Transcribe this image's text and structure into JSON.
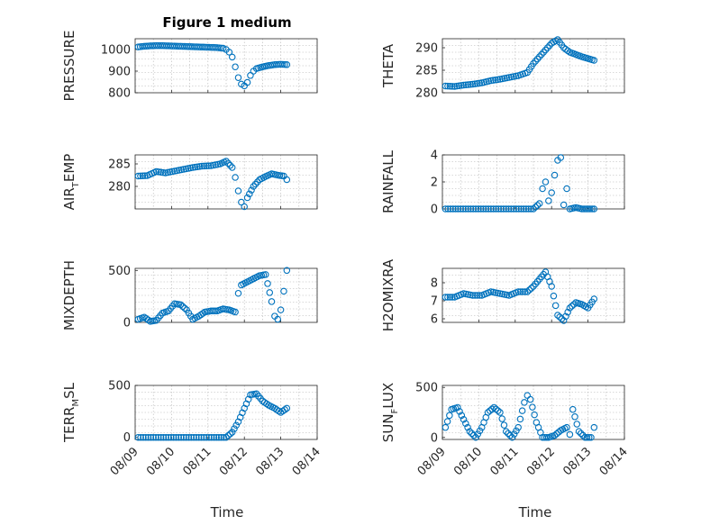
{
  "figure": {
    "title": "Figure 1 medium",
    "x_axis_label": "Time",
    "marker_color": "#0072BD"
  },
  "chart_data": [
    {
      "type": "scatter",
      "ylabel": "PRESSURE",
      "ylim": [
        800,
        1050
      ],
      "yticks": [
        800,
        900,
        1000
      ],
      "xticks": [
        "08/09",
        "08/10",
        "08/11",
        "08/12",
        "08/13",
        "08/14"
      ],
      "show_xtick_labels": false,
      "x": [
        "08/09 02h",
        "08/09 06h",
        "08/09 10h",
        "08/09 14h",
        "08/09 18h",
        "08/09 22h",
        "08/10 02h",
        "08/10 06h",
        "08/10 10h",
        "08/10 14h",
        "08/10 18h",
        "08/10 22h",
        "08/11 02h",
        "08/11 06h",
        "08/11 10h",
        "08/11 12h",
        "08/11 14h",
        "08/11 16h",
        "08/11 18h",
        "08/11 20h",
        "08/11 22h",
        "08/12 00h",
        "08/12 02h",
        "08/12 04h",
        "08/12 06h",
        "08/12 08h",
        "08/12 12h",
        "08/12 16h",
        "08/12 20h",
        "08/13 00h",
        "08/13 04h"
      ],
      "values": [
        1012,
        1015,
        1017,
        1018,
        1018,
        1017,
        1016,
        1015,
        1014,
        1013,
        1012,
        1011,
        1010,
        1009,
        1006,
        1000,
        988,
        965,
        920,
        870,
        840,
        832,
        848,
        880,
        900,
        912,
        920,
        926,
        930,
        932,
        930
      ]
    },
    {
      "type": "scatter",
      "ylabel": "THETA",
      "ylim": [
        280,
        292
      ],
      "yticks": [
        280,
        285,
        290
      ],
      "xticks": [
        "08/09",
        "08/10",
        "08/11",
        "08/12",
        "08/13",
        "08/14"
      ],
      "show_xtick_labels": false,
      "x": [
        "08/09 02h",
        "08/09 08h",
        "08/09 14h",
        "08/09 20h",
        "08/10 02h",
        "08/10 08h",
        "08/10 14h",
        "08/10 20h",
        "08/11 02h",
        "08/11 08h",
        "08/11 12h",
        "08/11 16h",
        "08/11 20h",
        "08/12 00h",
        "08/12 04h",
        "08/12 08h",
        "08/12 12h",
        "08/12 16h",
        "08/12 20h",
        "08/13 00h",
        "08/13 04h"
      ],
      "values": [
        281.5,
        281.4,
        281.7,
        281.9,
        282.2,
        282.7,
        283.0,
        283.4,
        283.8,
        284.5,
        286.5,
        288.0,
        289.5,
        291.0,
        291.8,
        290.0,
        289.0,
        288.5,
        288.0,
        287.6,
        287.2
      ]
    },
    {
      "type": "scatter",
      "ylabel": "AIR",
      "ylabel_sub": "T",
      "ylabel_suffix": "EMP",
      "ylim": [
        275,
        287
      ],
      "yticks": [
        280,
        285
      ],
      "xticks": [
        "08/09",
        "08/10",
        "08/11",
        "08/12",
        "08/13",
        "08/14"
      ],
      "show_xtick_labels": false,
      "x": [
        "08/09 02h",
        "08/09 08h",
        "08/09 14h",
        "08/09 20h",
        "08/10 02h",
        "08/10 08h",
        "08/10 14h",
        "08/10 20h",
        "08/11 02h",
        "08/11 08h",
        "08/11 12h",
        "08/11 16h",
        "08/11 18h",
        "08/11 20h",
        "08/11 22h",
        "08/12 00h",
        "08/12 02h",
        "08/12 06h",
        "08/12 10h",
        "08/12 14h",
        "08/12 18h",
        "08/12 22h",
        "08/13 02h",
        "08/13 04h"
      ],
      "values": [
        282.3,
        282.4,
        283.3,
        283.0,
        283.4,
        283.8,
        284.2,
        284.5,
        284.6,
        285.0,
        285.6,
        284.2,
        282.0,
        279.0,
        276.5,
        275.5,
        277.5,
        280.0,
        281.5,
        282.2,
        282.8,
        282.5,
        282.3,
        281.5
      ]
    },
    {
      "type": "scatter",
      "ylabel": "RAINFALL",
      "ylim": [
        0,
        4
      ],
      "yticks": [
        0,
        2,
        4
      ],
      "xticks": [
        "08/09",
        "08/10",
        "08/11",
        "08/12",
        "08/13",
        "08/14"
      ],
      "show_xtick_labels": false,
      "x": [
        "08/09 02h",
        "08/09 12h",
        "08/09 22h",
        "08/10 08h",
        "08/10 18h",
        "08/11 04h",
        "08/11 12h",
        "08/11 16h",
        "08/11 18h",
        "08/11 20h",
        "08/11 22h",
        "08/12 00h",
        "08/12 02h",
        "08/12 04h",
        "08/12 06h",
        "08/12 08h",
        "08/12 10h",
        "08/12 12h",
        "08/12 16h",
        "08/12 20h",
        "08/13 00h",
        "08/13 04h"
      ],
      "values": [
        0,
        0,
        0,
        0,
        0,
        0,
        0,
        0.4,
        1.5,
        2.0,
        0.6,
        1.2,
        2.5,
        3.6,
        3.8,
        0.3,
        1.5,
        0,
        0.1,
        0,
        0,
        0
      ]
    },
    {
      "type": "scatter",
      "ylabel": "MIXDEPTH",
      "ylim": [
        0,
        520
      ],
      "yticks": [
        0,
        500
      ],
      "xticks": [
        "08/09",
        "08/10",
        "08/11",
        "08/12",
        "08/13",
        "08/14"
      ],
      "show_xtick_labels": false,
      "x": [
        "08/09 02h",
        "08/09 06h",
        "08/09 10h",
        "08/09 14h",
        "08/09 18h",
        "08/09 22h",
        "08/10 02h",
        "08/10 06h",
        "08/10 10h",
        "08/10 14h",
        "08/10 18h",
        "08/10 22h",
        "08/11 02h",
        "08/11 06h",
        "08/11 10h",
        "08/11 14h",
        "08/11 18h",
        "08/11 20h",
        "08/11 22h",
        "08/12 02h",
        "08/12 06h",
        "08/12 10h",
        "08/12 14h",
        "08/12 18h",
        "08/12 20h",
        "08/12 22h",
        "08/13 00h",
        "08/13 02h",
        "08/13 04h"
      ],
      "values": [
        30,
        50,
        10,
        20,
        90,
        110,
        180,
        170,
        120,
        30,
        60,
        100,
        110,
        110,
        130,
        120,
        100,
        280,
        360,
        390,
        420,
        450,
        460,
        200,
        60,
        30,
        120,
        300,
        500
      ]
    },
    {
      "type": "scatter",
      "ylabel": "H2OMIXRA",
      "ylim": [
        5.8,
        8.8
      ],
      "yticks": [
        6,
        7,
        8
      ],
      "xticks": [
        "08/09",
        "08/10",
        "08/11",
        "08/12",
        "08/13",
        "08/14"
      ],
      "show_xtick_labels": false,
      "x": [
        "08/09 02h",
        "08/09 08h",
        "08/09 14h",
        "08/09 20h",
        "08/10 02h",
        "08/10 08h",
        "08/10 14h",
        "08/10 20h",
        "08/11 02h",
        "08/11 08h",
        "08/11 12h",
        "08/11 16h",
        "08/11 20h",
        "08/12 00h",
        "08/12 04h",
        "08/12 08h",
        "08/12 12h",
        "08/12 16h",
        "08/12 20h",
        "08/13 00h",
        "08/13 04h"
      ],
      "values": [
        7.2,
        7.2,
        7.4,
        7.3,
        7.3,
        7.5,
        7.4,
        7.3,
        7.5,
        7.5,
        7.8,
        8.2,
        8.6,
        7.8,
        6.2,
        5.9,
        6.6,
        6.9,
        6.8,
        6.6,
        7.1
      ]
    },
    {
      "type": "scatter",
      "ylabel": "TERR",
      "ylabel_sub": "M",
      "ylabel_suffix": "SL",
      "ylim": [
        -20,
        500
      ],
      "yticks": [
        0,
        500
      ],
      "xticks": [
        "08/09",
        "08/10",
        "08/11",
        "08/12",
        "08/13",
        "08/14"
      ],
      "show_xtick_labels": true,
      "x": [
        "08/09 02h",
        "08/09 12h",
        "08/09 22h",
        "08/10 08h",
        "08/10 18h",
        "08/11 04h",
        "08/11 12h",
        "08/11 16h",
        "08/11 20h",
        "08/12 00h",
        "08/12 04h",
        "08/12 08h",
        "08/12 12h",
        "08/12 16h",
        "08/12 20h",
        "08/13 00h",
        "08/13 04h"
      ],
      "values": [
        0,
        0,
        0,
        0,
        0,
        0,
        0,
        50,
        150,
        280,
        410,
        420,
        350,
        310,
        280,
        240,
        280
      ]
    },
    {
      "type": "scatter",
      "ylabel": "SUN",
      "ylabel_sub": "F",
      "ylabel_suffix": "LUX",
      "ylim": [
        -20,
        520
      ],
      "yticks": [
        0,
        500
      ],
      "xticks": [
        "08/09",
        "08/10",
        "08/11",
        "08/12",
        "08/13",
        "08/14"
      ],
      "show_xtick_labels": true,
      "x": [
        "08/09 02h",
        "08/09 06h",
        "08/09 10h",
        "08/09 14h",
        "08/09 18h",
        "08/09 22h",
        "08/10 02h",
        "08/10 06h",
        "08/10 10h",
        "08/10 14h",
        "08/10 18h",
        "08/10 22h",
        "08/11 02h",
        "08/11 06h",
        "08/11 08h",
        "08/11 10h",
        "08/11 14h",
        "08/11 18h",
        "08/11 22h",
        "08/12 02h",
        "08/12 06h",
        "08/12 10h",
        "08/12 12h",
        "08/12 14h",
        "08/12 18h",
        "08/12 22h",
        "08/13 02h",
        "08/13 04h"
      ],
      "values": [
        100,
        280,
        300,
        180,
        60,
        0,
        100,
        250,
        300,
        250,
        60,
        0,
        100,
        350,
        420,
        380,
        150,
        0,
        0,
        20,
        70,
        100,
        30,
        280,
        60,
        0,
        0,
        100
      ]
    }
  ]
}
